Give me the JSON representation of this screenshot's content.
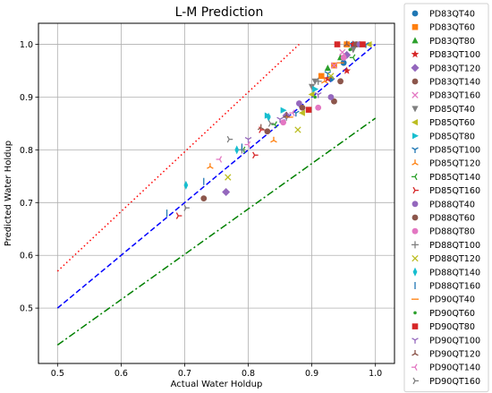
{
  "chart_data": {
    "type": "scatter",
    "title": "L-M Prediction",
    "xlabel": "Actual Water Holdup",
    "ylabel": "Predicted Water Holdup",
    "xlim": [
      0.47,
      1.03
    ],
    "ylim": [
      0.395,
      1.04
    ],
    "xticks": [
      "0.5",
      "0.6",
      "0.7",
      "0.8",
      "0.9",
      "1.0"
    ],
    "yticks": [
      "0.5",
      "0.6",
      "0.7",
      "0.8",
      "0.9",
      "1.0"
    ],
    "grid": true,
    "legend_position": "right-outside",
    "reference_lines": [
      {
        "style": "dotted",
        "color": "#ff0000",
        "points": [
          [
            0.5,
            0.57
          ],
          [
            0.88,
            1.0
          ]
        ]
      },
      {
        "style": "dashed",
        "color": "#0000ff",
        "points": [
          [
            0.5,
            0.5
          ],
          [
            1.0,
            1.0
          ]
        ]
      },
      {
        "style": "dashdot",
        "color": "#008000",
        "points": [
          [
            0.5,
            0.43
          ],
          [
            1.0,
            0.86
          ]
        ]
      }
    ],
    "series": [
      {
        "name": "PD83QT40",
        "color": "#1f77b4",
        "marker": "circle",
        "points": [
          [
            0.93,
            0.935
          ],
          [
            0.95,
            0.965
          ],
          [
            0.965,
            1.0
          ]
        ]
      },
      {
        "name": "PD83QT60",
        "color": "#ff7f0e",
        "marker": "square",
        "points": [
          [
            0.935,
            0.96
          ],
          [
            0.955,
            1.0
          ],
          [
            0.915,
            0.94
          ]
        ]
      },
      {
        "name": "PD83QT80",
        "color": "#2ca02c",
        "marker": "triangle-up",
        "points": [
          [
            0.925,
            0.955
          ],
          [
            0.945,
            0.975
          ],
          [
            0.975,
            1.0
          ]
        ]
      },
      {
        "name": "PD83QT100",
        "color": "#d62728",
        "marker": "star",
        "points": [
          [
            0.955,
            0.95
          ],
          [
            0.925,
            0.935
          ],
          [
            0.965,
            1.0
          ]
        ]
      },
      {
        "name": "PD83QT120",
        "color": "#9467bd",
        "marker": "diamond",
        "points": [
          [
            0.765,
            0.72
          ],
          [
            0.86,
            0.865
          ],
          [
            0.955,
            0.98
          ]
        ]
      },
      {
        "name": "PD83QT140",
        "color": "#8c564b",
        "marker": "circle",
        "points": [
          [
            0.935,
            0.892
          ],
          [
            0.945,
            0.93
          ],
          [
            0.97,
            1.0
          ]
        ]
      },
      {
        "name": "PD83QT160",
        "color": "#e377c2",
        "marker": "x",
        "points": [
          [
            0.935,
            0.96
          ],
          [
            0.948,
            0.985
          ]
        ]
      },
      {
        "name": "PD85QT40",
        "color": "#7f7f7f",
        "marker": "triangle-down",
        "points": [
          [
            0.9,
            0.92
          ],
          [
            0.905,
            0.93
          ],
          [
            0.965,
            0.99
          ]
        ]
      },
      {
        "name": "PD85QT60",
        "color": "#bcbd22",
        "marker": "triangle-left",
        "points": [
          [
            0.885,
            0.87
          ],
          [
            0.9,
            0.905
          ],
          [
            0.99,
            1.0
          ]
        ]
      },
      {
        "name": "PD85QT80",
        "color": "#17becf",
        "marker": "triangle-right",
        "points": [
          [
            0.83,
            0.865
          ],
          [
            0.855,
            0.875
          ],
          [
            0.905,
            0.915
          ]
        ]
      },
      {
        "name": "PD85QT100",
        "color": "#1f77b4",
        "marker": "tri-down",
        "points": [
          [
            0.875,
            0.87
          ],
          [
            0.925,
            0.945
          ],
          [
            0.985,
            1.0
          ]
        ]
      },
      {
        "name": "PD85QT120",
        "color": "#ff7f0e",
        "marker": "tri-up",
        "points": [
          [
            0.74,
            0.768
          ],
          [
            0.84,
            0.818
          ],
          [
            0.92,
            0.93
          ]
        ]
      },
      {
        "name": "PD85QT140",
        "color": "#2ca02c",
        "marker": "tri-left",
        "points": [
          [
            0.792,
            0.8
          ],
          [
            0.842,
            0.848
          ],
          [
            0.965,
            0.975
          ]
        ]
      },
      {
        "name": "PD85QT160",
        "color": "#d62728",
        "marker": "tri-right",
        "points": [
          [
            0.69,
            0.675
          ],
          [
            0.81,
            0.79
          ],
          [
            0.82,
            0.838
          ]
        ]
      },
      {
        "name": "PD88QT40",
        "color": "#9467bd",
        "marker": "circle",
        "points": [
          [
            0.88,
            0.888
          ],
          [
            0.93,
            0.9
          ],
          [
            0.975,
            1.0
          ]
        ]
      },
      {
        "name": "PD88QT60",
        "color": "#8c564b",
        "marker": "circle",
        "points": [
          [
            0.73,
            0.708
          ],
          [
            0.83,
            0.835
          ],
          [
            0.885,
            0.88
          ]
        ]
      },
      {
        "name": "PD88QT80",
        "color": "#e377c2",
        "marker": "circle",
        "points": [
          [
            0.855,
            0.852
          ],
          [
            0.91,
            0.88
          ],
          [
            0.95,
            0.975
          ]
        ]
      },
      {
        "name": "PD88QT100",
        "color": "#7f7f7f",
        "marker": "plus",
        "points": [
          [
            0.79,
            0.8
          ],
          [
            0.86,
            0.862
          ],
          [
            0.91,
            0.93
          ]
        ]
      },
      {
        "name": "PD88QT120",
        "color": "#bcbd22",
        "marker": "x",
        "points": [
          [
            0.768,
            0.748
          ],
          [
            0.878,
            0.838
          ],
          [
            0.93,
            0.94
          ]
        ]
      },
      {
        "name": "PD88QT140",
        "color": "#17becf",
        "marker": "thin-diamond",
        "points": [
          [
            0.702,
            0.733
          ],
          [
            0.782,
            0.8
          ],
          [
            0.832,
            0.862
          ]
        ]
      },
      {
        "name": "PD88QT160",
        "color": "#1f77b4",
        "marker": "vline",
        "points": [
          [
            0.672,
            0.68
          ],
          [
            0.73,
            0.74
          ],
          [
            0.79,
            0.805
          ]
        ]
      },
      {
        "name": "PD90QT40",
        "color": "#ff7f0e",
        "marker": "hline",
        "points": [
          [
            0.865,
            0.862
          ],
          [
            0.945,
            0.965
          ]
        ]
      },
      {
        "name": "PD90QT60",
        "color": "#2ca02c",
        "marker": "point",
        "points": [
          [
            0.905,
            0.9
          ],
          [
            0.96,
            0.99
          ]
        ]
      },
      {
        "name": "PD90QT80",
        "color": "#d62728",
        "marker": "square",
        "points": [
          [
            0.895,
            0.876
          ],
          [
            0.94,
            1.0
          ],
          [
            0.98,
            1.0
          ]
        ]
      },
      {
        "name": "PD90QT100",
        "color": "#9467bd",
        "marker": "tri-down",
        "points": [
          [
            0.8,
            0.82
          ],
          [
            0.85,
            0.858
          ],
          [
            0.91,
            0.905
          ]
        ]
      },
      {
        "name": "PD90QT120",
        "color": "#8c564b",
        "marker": "tri-up",
        "points": [
          [
            0.82,
            0.842
          ],
          [
            0.86,
            0.865
          ],
          [
            0.955,
            1.0
          ]
        ]
      },
      {
        "name": "PD90QT140",
        "color": "#e377c2",
        "marker": "tri-left",
        "points": [
          [
            0.755,
            0.782
          ],
          [
            0.8,
            0.81
          ],
          [
            0.87,
            0.87
          ]
        ]
      },
      {
        "name": "PD90QT160",
        "color": "#7f7f7f",
        "marker": "tri-right",
        "points": [
          [
            0.702,
            0.69
          ],
          [
            0.77,
            0.82
          ],
          [
            0.835,
            0.85
          ]
        ]
      }
    ]
  }
}
